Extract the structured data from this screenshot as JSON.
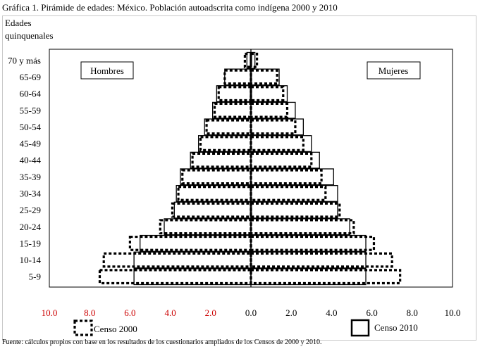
{
  "page": {
    "title": "Gráfica 1. Pirámide de edades: México. Población autoadscrita como indígena 2000 y 2010",
    "source": "Fuente: cálculos propios con base en los resultados de los cuestionarios ampliados de los Censos de 2000 y 2010."
  },
  "chart_data": {
    "type": "bar",
    "orientation": "horizontal",
    "layout": "population-pyramid",
    "ylabel": [
      "Edades",
      "quinquenales"
    ],
    "categories": [
      "5-9",
      "10-14",
      "15-19",
      "20-24",
      "25-29",
      "30-34",
      "35-39",
      "40-44",
      "45-49",
      "50-54",
      "55-59",
      "60-64",
      "65-69",
      "70 y más"
    ],
    "xlim": [
      -10,
      10
    ],
    "xticks": [
      -10,
      -8,
      -6,
      -4,
      -2,
      0,
      2,
      4,
      6,
      8,
      10
    ],
    "xtick_labels": [
      "10.0",
      "8.0",
      "6.0",
      "4.0",
      "2.0",
      "0.0",
      "2.0",
      "4.0",
      "6.0",
      "8.0",
      "10.0"
    ],
    "xtick_label_color_negative": "#cc0000",
    "xtick_label_color_positive": "#000000",
    "group_labels": {
      "left": "Hombres",
      "right": "Mujeres"
    },
    "series": [
      {
        "name": "Censo 2000",
        "style": "dotted",
        "hombres": [
          7.5,
          7.3,
          6.0,
          4.5,
          3.9,
          3.6,
          3.4,
          2.9,
          2.5,
          2.2,
          1.8,
          1.6,
          1.3,
          0.3
        ],
        "mujeres": [
          7.4,
          7.0,
          6.1,
          5.1,
          4.4,
          3.7,
          3.5,
          3.0,
          2.6,
          2.2,
          1.8,
          1.6,
          1.3,
          0.3
        ]
      },
      {
        "name": "Censo 2010",
        "style": "solid",
        "hombres": [
          5.8,
          5.8,
          5.5,
          4.3,
          3.8,
          3.7,
          3.5,
          3.0,
          2.6,
          2.3,
          1.9,
          1.7,
          1.3,
          0.2
        ],
        "mujeres": [
          5.7,
          5.7,
          5.7,
          4.9,
          4.3,
          4.3,
          4.1,
          3.4,
          3.0,
          2.6,
          2.2,
          1.8,
          1.4,
          0.2
        ]
      }
    ],
    "legend": {
      "placement": "bottom",
      "entries": [
        "Censo 2000",
        "Censo 2010"
      ]
    },
    "grid": false
  }
}
